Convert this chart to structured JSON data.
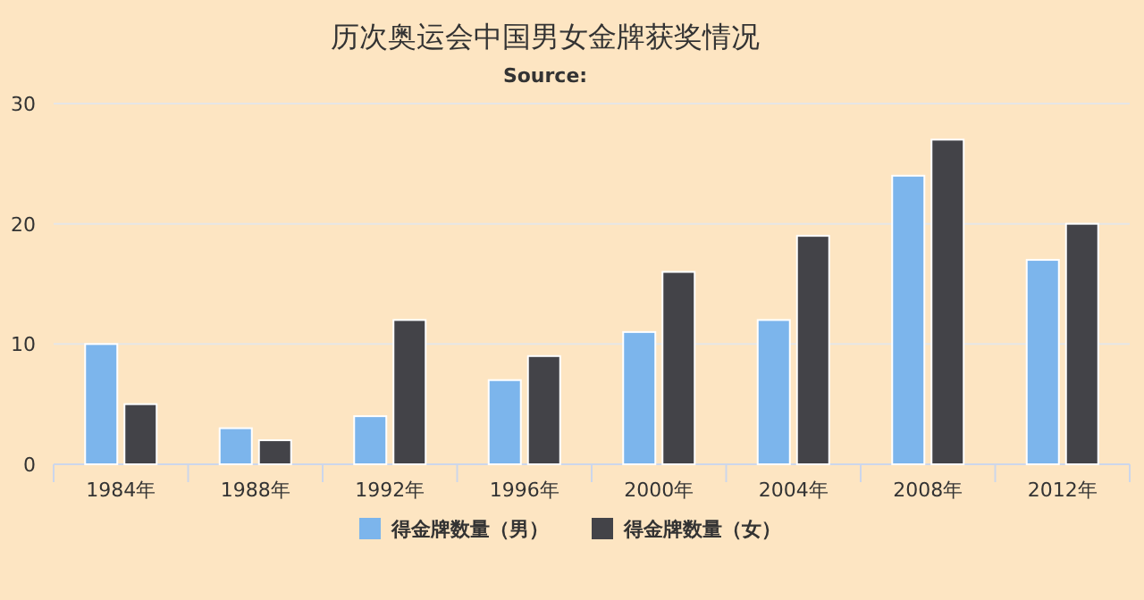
{
  "chart_data": {
    "type": "bar",
    "title": "历次奥运会中国男女金牌获奖情况",
    "subtitle": "Source:",
    "categories": [
      "1984年",
      "1988年",
      "1992年",
      "1996年",
      "2000年",
      "2004年",
      "2008年",
      "2012年"
    ],
    "series": [
      {
        "name": "得金牌数量（男）",
        "color": "#7cb5ec",
        "values": [
          10,
          3,
          4,
          7,
          11,
          12,
          24,
          17
        ]
      },
      {
        "name": "得金牌数量（女）",
        "color": "#434348",
        "values": [
          5,
          2,
          12,
          9,
          16,
          19,
          27,
          20
        ]
      }
    ],
    "ylim": [
      0,
      30
    ],
    "yticks": [
      0,
      10,
      20,
      30
    ],
    "grid": "y",
    "legend": "bottom"
  }
}
